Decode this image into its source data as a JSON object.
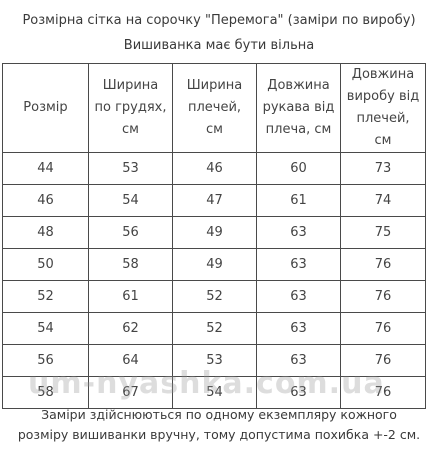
{
  "title": "Розмірна сітка на сорочку \"Перемога\" (заміри по виробу)",
  "subtitle": "Вишиванка має бути вільна",
  "table": {
    "headers": [
      [
        "Розмір"
      ],
      [
        "Ширина",
        "по грудях,",
        "см"
      ],
      [
        "Ширина",
        "плечей,",
        "см"
      ],
      [
        "Довжина",
        "рукава від",
        "плеча, см"
      ],
      [
        "Довжина",
        "виробу від",
        "плечей,",
        "см"
      ]
    ],
    "rows": [
      [
        "44",
        "53",
        "46",
        "60",
        "73"
      ],
      [
        "46",
        "54",
        "47",
        "61",
        "74"
      ],
      [
        "48",
        "56",
        "49",
        "63",
        "75"
      ],
      [
        "50",
        "58",
        "49",
        "63",
        "76"
      ],
      [
        "52",
        "61",
        "52",
        "63",
        "76"
      ],
      [
        "54",
        "62",
        "52",
        "63",
        "76"
      ],
      [
        "56",
        "64",
        "53",
        "63",
        "76"
      ],
      [
        "58",
        "67",
        "54",
        "63",
        "76"
      ]
    ]
  },
  "watermark": "um-nyashka.com.ua",
  "footnote": {
    "line1": "Заміри здійснюються  по одному екземпляру кожного",
    "line2": "розміру вишиванки вручну, тому допустима похибка +-2 см."
  }
}
